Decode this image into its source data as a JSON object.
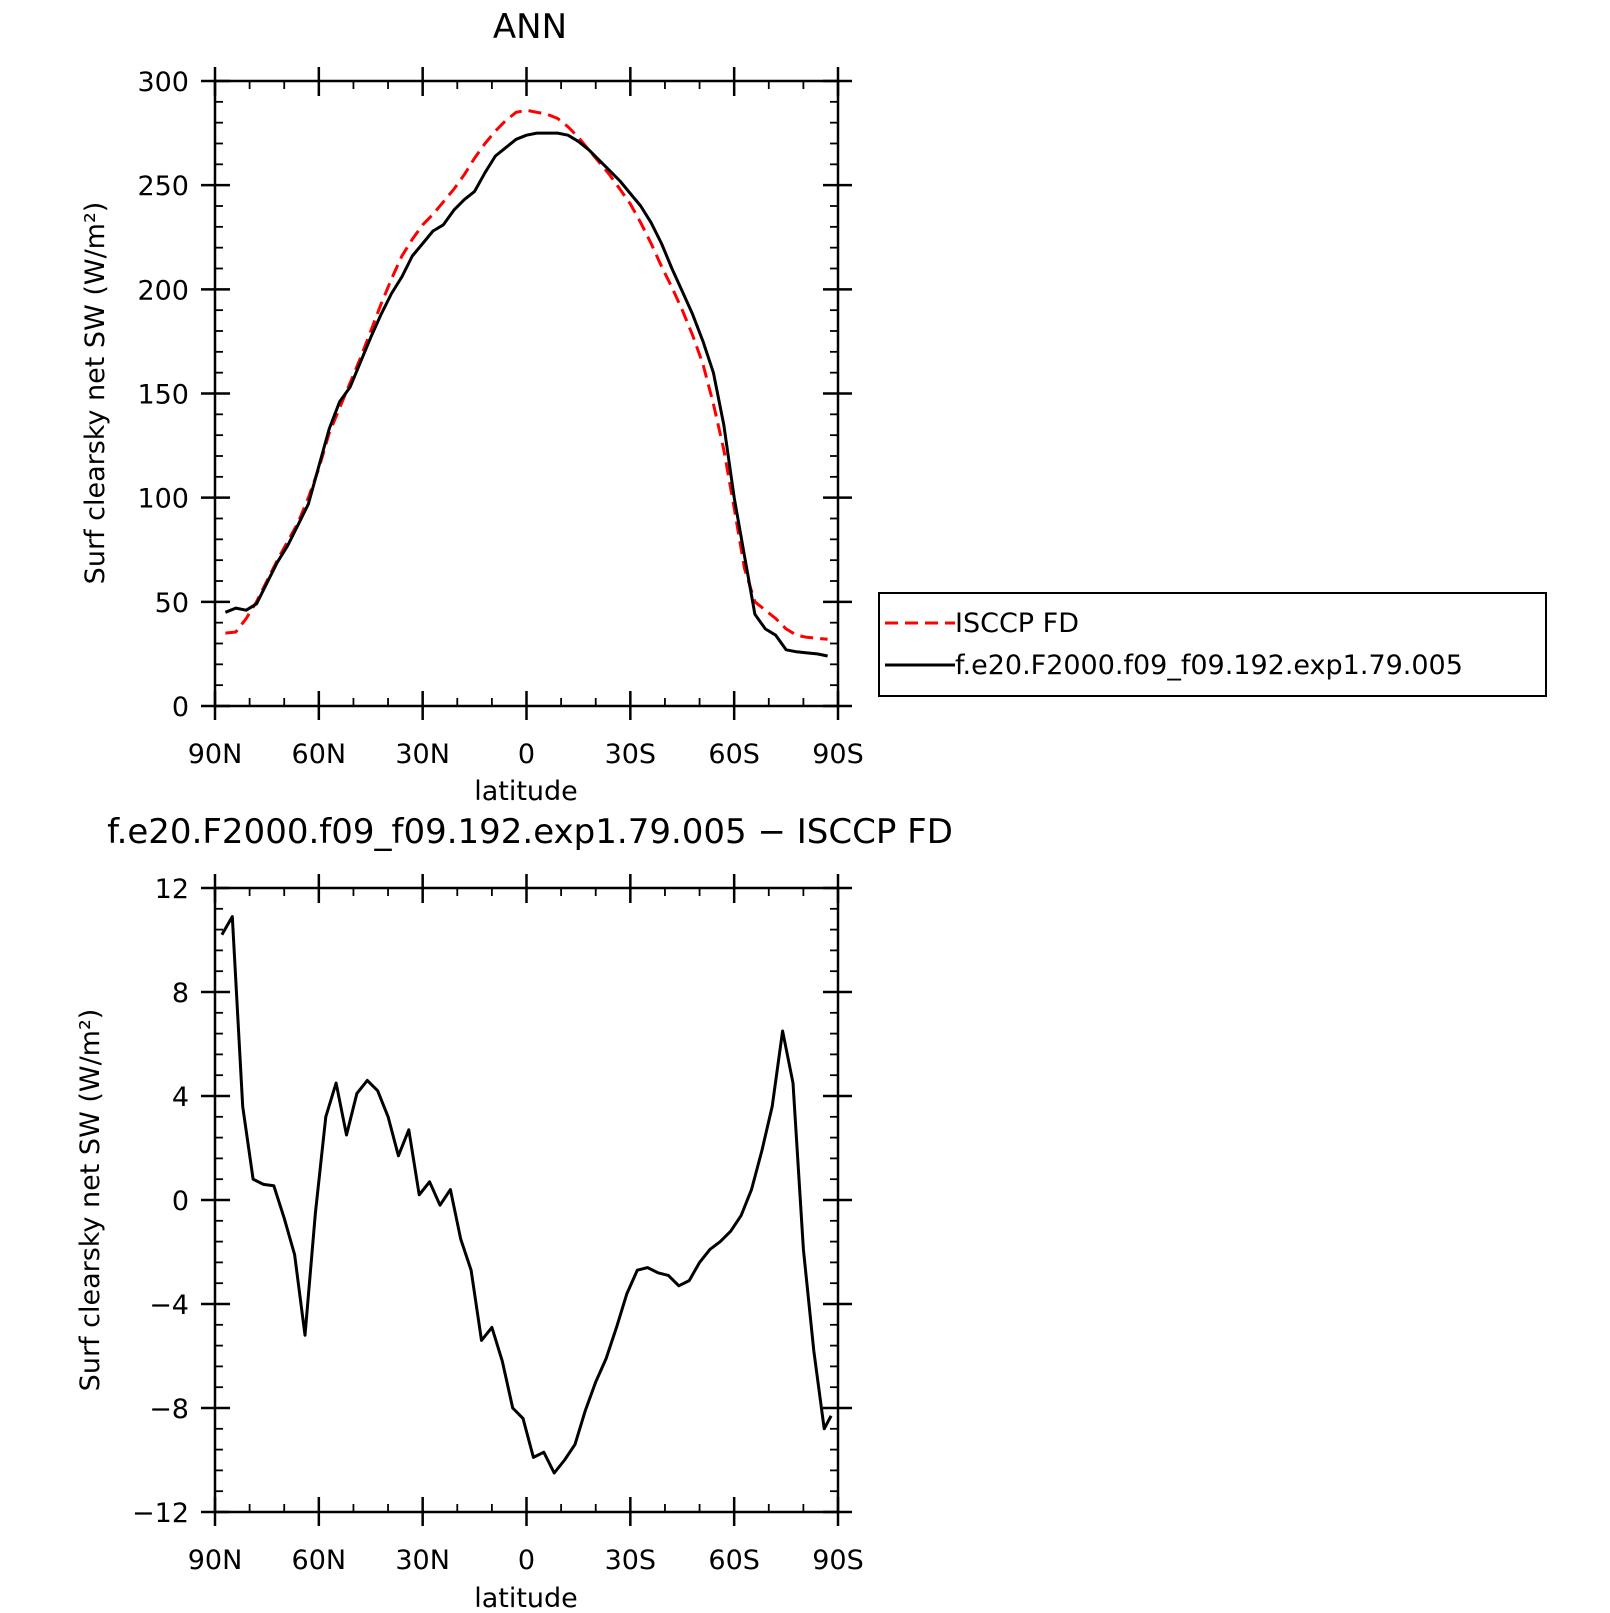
{
  "chart_data": [
    {
      "type": "line",
      "title": "ANN",
      "xlabel": "latitude",
      "ylabel": "Surf clearsky net SW (W/m²)",
      "xticks": [
        "90N",
        "60N",
        "30N",
        "0",
        "30S",
        "60S",
        "90S"
      ],
      "yticks": [
        "0",
        "50",
        "100",
        "150",
        "200",
        "250",
        "300"
      ],
      "xlim": [
        90,
        -90
      ],
      "ylim": [
        0,
        300
      ],
      "grid": false,
      "legend": "right",
      "x": [
        87,
        84,
        81,
        78,
        75,
        72,
        69,
        66,
        63,
        60,
        57,
        54,
        51,
        48,
        45,
        42,
        39,
        36,
        33,
        30,
        27,
        24,
        21,
        18,
        15,
        12,
        9,
        6,
        3,
        0,
        -3,
        -6,
        -9,
        -12,
        -15,
        -18,
        -21,
        -24,
        -27,
        -30,
        -33,
        -36,
        -39,
        -42,
        -45,
        -48,
        -51,
        -54,
        -57,
        -60,
        -63,
        -66,
        -69,
        -72,
        -75,
        -78,
        -81,
        -84,
        -87
      ],
      "series": [
        {
          "name": "ISCCP FD",
          "color": "#ff0000",
          "dash": "dashed",
          "values": [
            35,
            35.5,
            42,
            50,
            60,
            70,
            79,
            88,
            100,
            114,
            131,
            143,
            155,
            167,
            180,
            193,
            205,
            216,
            224,
            231,
            236,
            242,
            248,
            255,
            263,
            270,
            276,
            281,
            285,
            286,
            285,
            284,
            282,
            278,
            273,
            267,
            261,
            255,
            248,
            241,
            232,
            222,
            211,
            201,
            190,
            178,
            164,
            145,
            123,
            95,
            66,
            50,
            46,
            42,
            37,
            34,
            33,
            32.5,
            32
          ]
        },
        {
          "name": "f.e20.F2000.f09_f09.192.exp1.79.005",
          "color": "#000000",
          "dash": "solid",
          "values": [
            45,
            47,
            46,
            49,
            59,
            69,
            77,
            87,
            97,
            115,
            133,
            146,
            153,
            165,
            177,
            188,
            198,
            206,
            216,
            222,
            228,
            231,
            238,
            243,
            247,
            256,
            264,
            268,
            272,
            274,
            275,
            275,
            275,
            274,
            271,
            267,
            262,
            257,
            252,
            246,
            240,
            232,
            222,
            210,
            199,
            188,
            175,
            160,
            135,
            100,
            72,
            44,
            37,
            34,
            27,
            26,
            25.5,
            25,
            24
          ]
        }
      ]
    },
    {
      "type": "line",
      "title": "f.e20.F2000.f09_f09.192.exp1.79.005 − ISCCP FD",
      "xlabel": "latitude",
      "ylabel": "Surf clearsky net SW (W/m²)",
      "xticks": [
        "90N",
        "60N",
        "30N",
        "0",
        "30S",
        "60S",
        "90S"
      ],
      "yticks": [
        "12",
        "8",
        "4",
        "0",
        "−4",
        "−8",
        "−12"
      ],
      "xlim": [
        90,
        -90
      ],
      "ylim": [
        -12,
        12
      ],
      "grid": false,
      "x": [
        88,
        85,
        82,
        79,
        76,
        73,
        70,
        67,
        64,
        61,
        58,
        55,
        52,
        49,
        46,
        43,
        40,
        37,
        34,
        31,
        28,
        25,
        22,
        19,
        16,
        13,
        10,
        7,
        4,
        1,
        -2,
        -5,
        -8,
        -11,
        -14,
        -17,
        -20,
        -23,
        -26,
        -29,
        -32,
        -35,
        -38,
        -41,
        -44,
        -47,
        -50,
        -53,
        -56,
        -59,
        -62,
        -65,
        -68,
        -71,
        -74,
        -77,
        -80,
        -83,
        -86,
        -88
      ],
      "series": [
        {
          "color": "#000000",
          "values": [
            10.2,
            10.9,
            3.6,
            0.8,
            0.6,
            0.55,
            -0.7,
            -2.1,
            -5.2,
            -0.5,
            3.2,
            4.5,
            2.5,
            4.1,
            4.6,
            4.2,
            3.2,
            1.7,
            2.7,
            0.2,
            0.7,
            -0.2,
            0.4,
            -1.5,
            -2.7,
            -5.4,
            -4.9,
            -6.2,
            -8,
            -8.4,
            -9.9,
            -9.7,
            -10.5,
            -10,
            -9.4,
            -8.1,
            -7,
            -6.1,
            -4.9,
            -3.6,
            -2.7,
            -2.6,
            -2.8,
            -2.9,
            -3.3,
            -3.1,
            -2.4,
            -1.9,
            -1.6,
            -1.2,
            -0.6,
            0.4,
            1.9,
            3.6,
            6.5,
            4.5,
            -1.9,
            -5.8,
            -8.8,
            -8.3
          ]
        }
      ]
    }
  ]
}
